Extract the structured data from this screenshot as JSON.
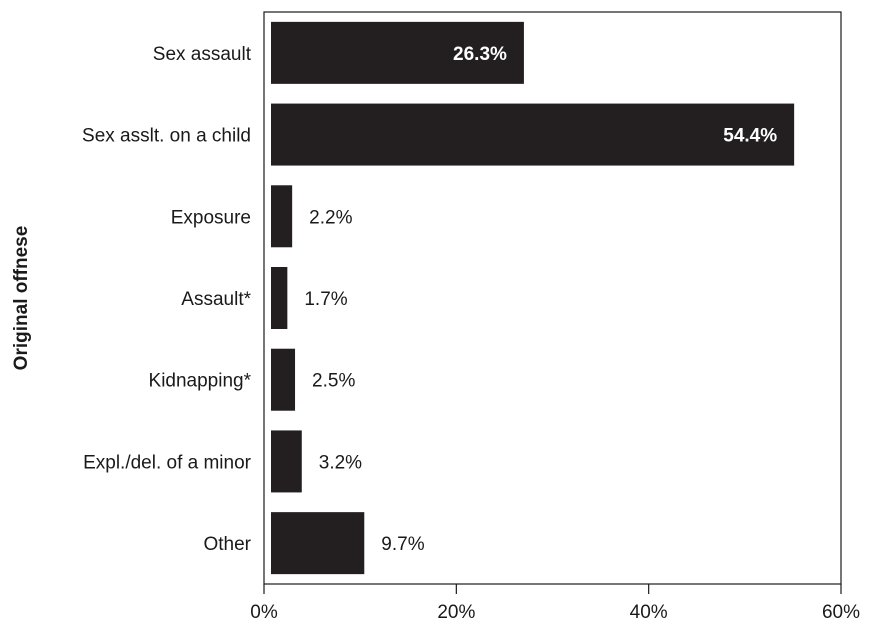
{
  "chart_data": {
    "type": "bar",
    "orientation": "horizontal",
    "categories": [
      "Sex assault",
      "Sex asslt. on a child",
      "Exposure",
      "Assault*",
      "Kidnapping*",
      "Expl./del. of a minor",
      "Other"
    ],
    "values": [
      26.3,
      54.4,
      2.2,
      1.7,
      2.5,
      3.2,
      9.7
    ],
    "value_labels": [
      "26.3%",
      "54.4%",
      "2.2%",
      "1.7%",
      "2.5%",
      "3.2%",
      "9.7%"
    ],
    "ylabel": "Original offnese",
    "xlabel": "",
    "xlim": [
      0,
      60
    ],
    "xticks": [
      0,
      20,
      40,
      60
    ],
    "xtick_labels": [
      "0%",
      "20%",
      "40%",
      "60%"
    ],
    "bar_color": "#231f20",
    "grid": false,
    "legend": "none"
  }
}
